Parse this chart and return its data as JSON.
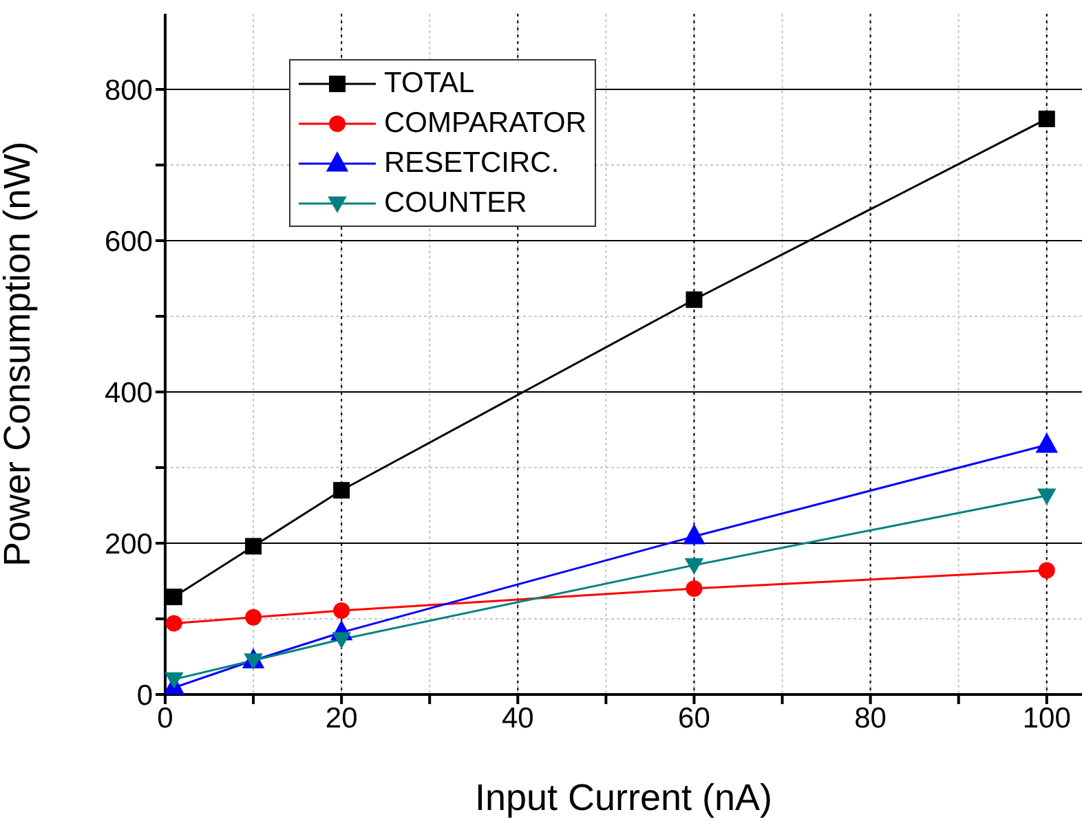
{
  "chart_data": {
    "type": "line",
    "xlabel": "Input Current (nA)",
    "ylabel": "Power Consumption (nW)",
    "x": [
      1,
      10,
      20,
      60,
      100
    ],
    "series": [
      {
        "name": "TOTAL",
        "color": "#000000",
        "marker": "square",
        "values": [
          129,
          196,
          270,
          522,
          761
        ]
      },
      {
        "name": "COMPARATOR",
        "color": "#ff0000",
        "marker": "circle",
        "values": [
          94,
          102,
          111,
          140,
          164
        ]
      },
      {
        "name": "RESETCIRC.",
        "color": "#0000ff",
        "marker": "triangle",
        "values": [
          9,
          45,
          82,
          209,
          330
        ]
      },
      {
        "name": "COUNTER",
        "color": "#008080",
        "marker": "triangle-down",
        "values": [
          20,
          45,
          73,
          171,
          263
        ]
      }
    ],
    "xlim": [
      0,
      104
    ],
    "ylim": [
      0,
      900
    ],
    "xticks": [
      0,
      {
        "value": 10,
        "label": null
      },
      20,
      {
        "value": 30,
        "label": null
      },
      40,
      {
        "value": 50,
        "label": null
      },
      60,
      {
        "value": 70,
        "label": null
      },
      80,
      {
        "value": 90,
        "label": null
      },
      100
    ],
    "yticks": [
      0,
      {
        "value": 100,
        "label": null
      },
      200,
      {
        "value": 300,
        "label": null
      },
      400,
      {
        "value": 500,
        "label": null
      },
      600,
      {
        "value": 700,
        "label": null
      },
      800
    ],
    "grid": true,
    "legend": "top left",
    "line_style": "solid"
  }
}
